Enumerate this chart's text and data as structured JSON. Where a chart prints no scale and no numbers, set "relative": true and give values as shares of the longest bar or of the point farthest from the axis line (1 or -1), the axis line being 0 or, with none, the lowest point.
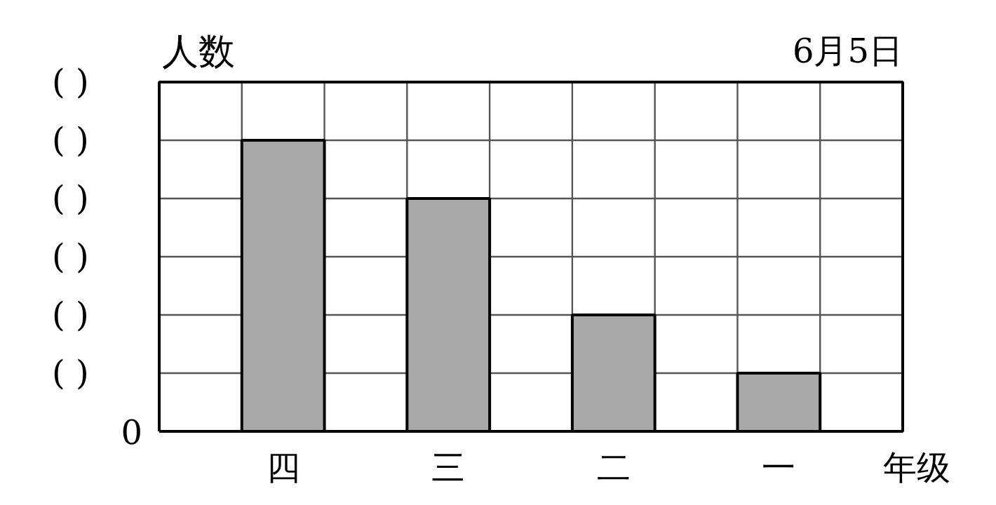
{
  "chart_data": {
    "type": "bar",
    "title": "6月5日",
    "ylabel": "人数",
    "xlabel": "年级",
    "categories": [
      "四",
      "三",
      "二",
      "一"
    ],
    "relative": true,
    "values": [
      1,
      0.8,
      0.4,
      0.2
    ],
    "color": "#a9a9a9",
    "ylim": [
      0,
      1.2
    ],
    "annotations": [
      "0",
      "(      )",
      "(      )",
      "(      )",
      "(      )",
      "(      )",
      "(      )"
    ],
    "grid": true
  }
}
